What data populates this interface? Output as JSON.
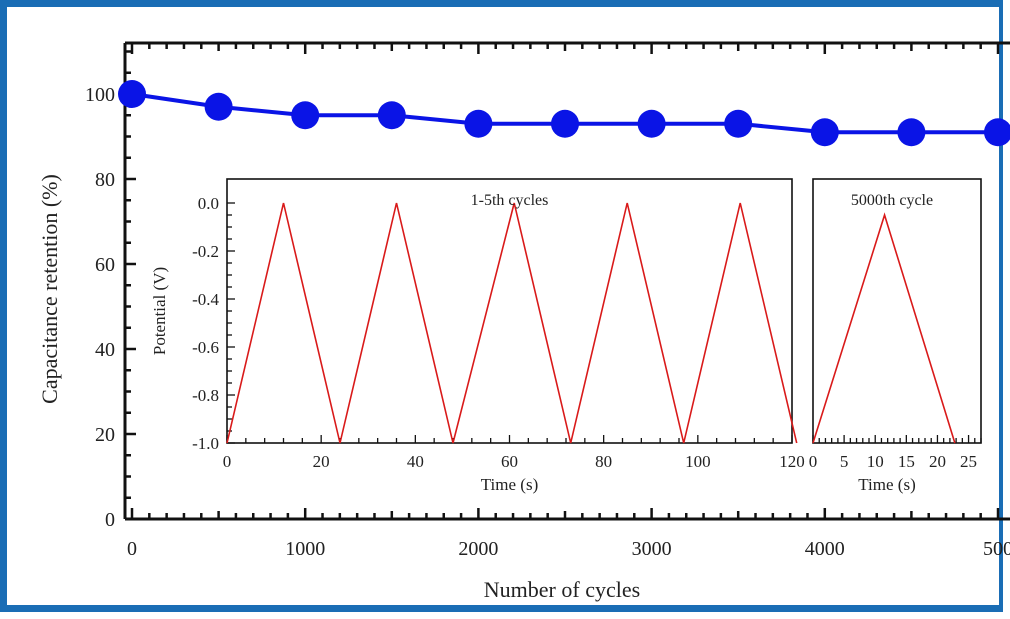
{
  "colors": {
    "frame": "#1a6db5",
    "main_series": "#0a14e6",
    "inset_series": "#d91a1a",
    "axes": "#111111"
  },
  "chart_data": [
    {
      "type": "line",
      "name": "main",
      "xlabel": "Number of cycles",
      "ylabel": "Capacitance retention (%)",
      "xlim": [
        0,
        5000
      ],
      "ylim": [
        0,
        112
      ],
      "x_ticks": [
        "0",
        "1000",
        "2000",
        "3000",
        "4000",
        "500"
      ],
      "y_ticks": [
        "0",
        "20",
        "40",
        "60",
        "80",
        "100"
      ],
      "x": [
        0,
        500,
        1000,
        1500,
        2000,
        2500,
        3000,
        3500,
        4000,
        4500,
        5000
      ],
      "y": [
        100,
        97,
        95,
        95,
        93,
        93,
        93,
        93,
        91,
        91,
        91
      ],
      "marker": "circle"
    },
    {
      "type": "line",
      "name": "inset-1",
      "annotation": "1-5th cycles",
      "xlabel": "Time (s)",
      "ylabel": "Potential (V)",
      "xlim": [
        0,
        120
      ],
      "ylim": [
        -1.0,
        0.1
      ],
      "x_ticks": [
        "0",
        "20",
        "40",
        "60",
        "80",
        "100",
        "120"
      ],
      "y_ticks": [
        "0.0",
        "-0.2",
        "-0.4",
        "-0.6",
        "-0.8",
        "-1.0"
      ],
      "x": [
        0,
        12,
        24,
        36,
        48,
        61,
        73,
        85,
        97,
        109,
        121
      ],
      "y": [
        -1.0,
        0.0,
        -1.0,
        0.0,
        -1.0,
        0.0,
        -1.0,
        0.0,
        -1.0,
        0.0,
        -1.0
      ]
    },
    {
      "type": "line",
      "name": "inset-2",
      "annotation": "5000th cycle",
      "xlabel": "Time (s)",
      "xlim": [
        0,
        27
      ],
      "ylim": [
        -1.0,
        0.1
      ],
      "x_ticks": [
        "0",
        "5",
        "10",
        "15",
        "20",
        "25"
      ],
      "x": [
        0,
        11.5,
        22.8
      ],
      "y": [
        -1.0,
        -0.05,
        -1.0
      ]
    }
  ]
}
